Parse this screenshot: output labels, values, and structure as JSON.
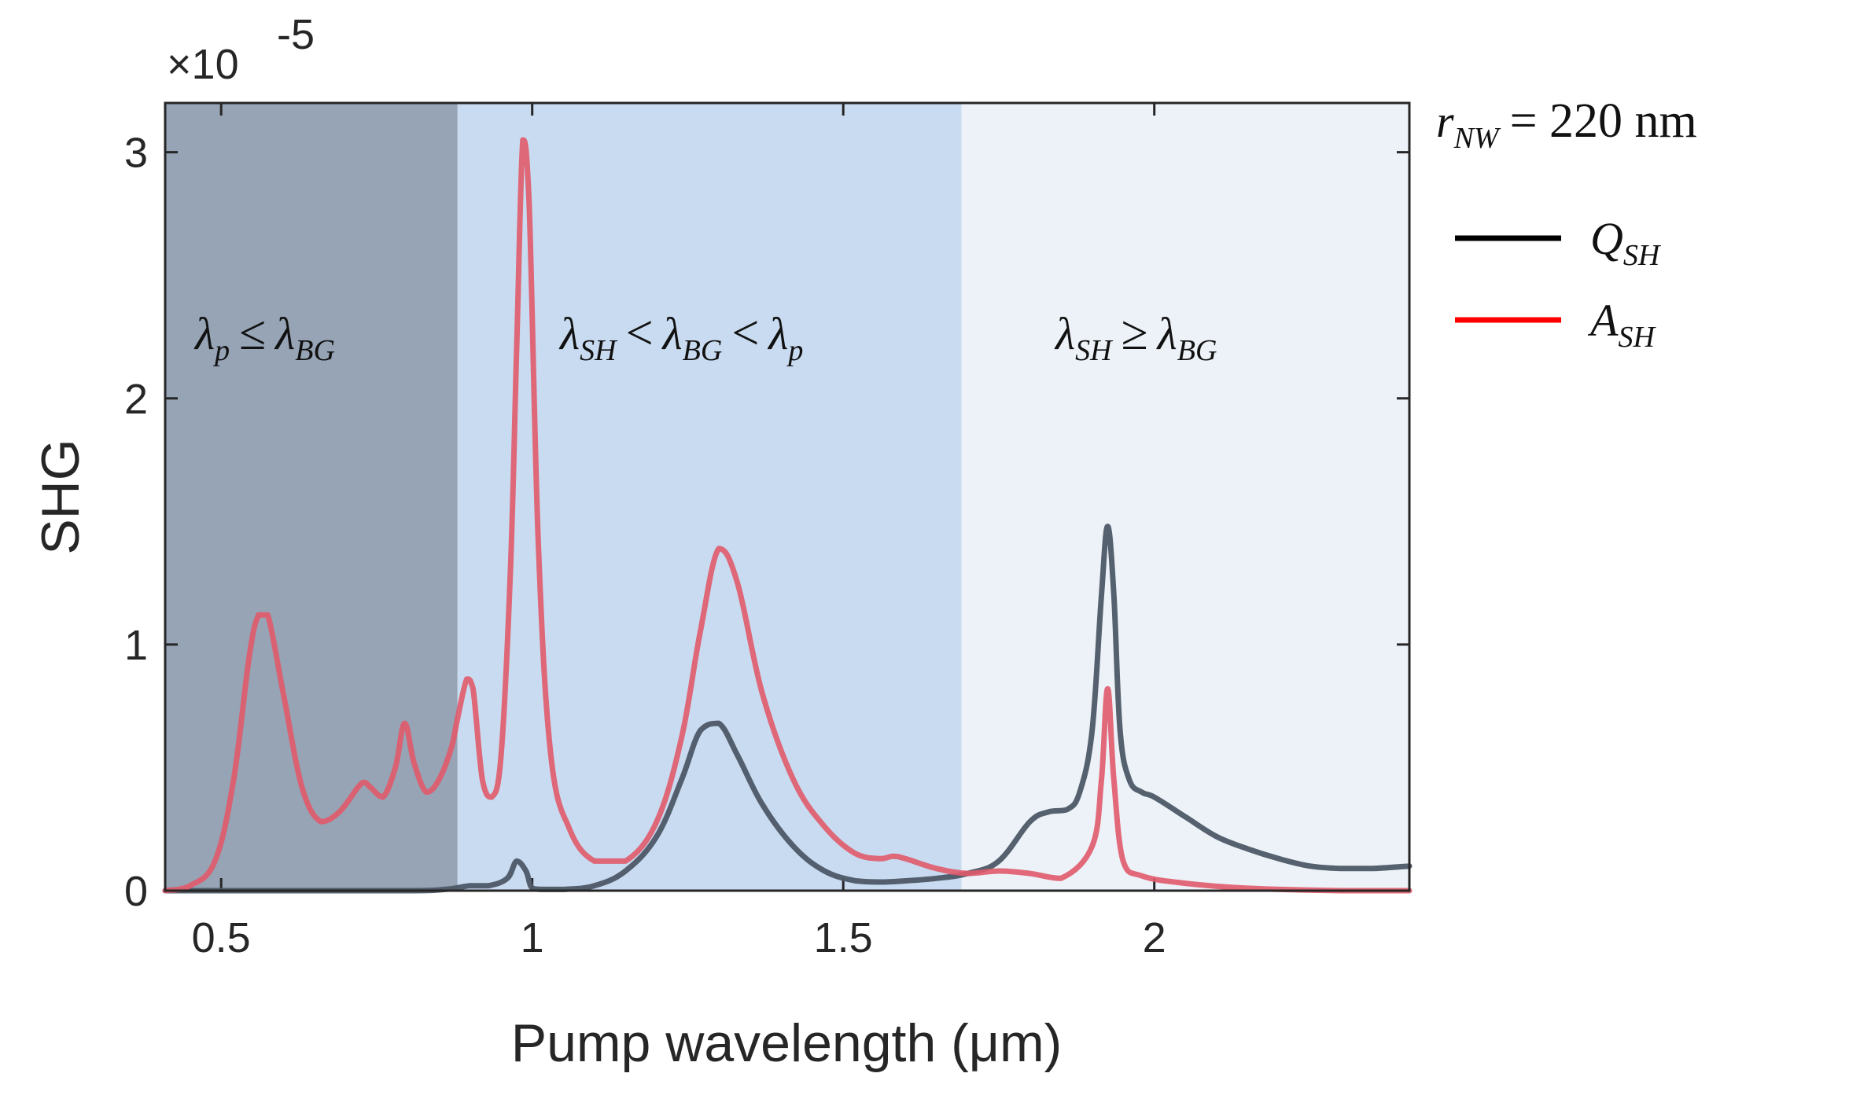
{
  "chart_data": {
    "type": "line",
    "title": "",
    "xlabel": "Pump wavelength (μm)",
    "ylabel": "SHG",
    "y_exponent_label": "×10",
    "y_exponent_power": "-5",
    "xlim": [
      0.41,
      2.41
    ],
    "ylim": [
      0,
      3.2
    ],
    "xticks": [
      0.5,
      1,
      1.5,
      2
    ],
    "xtick_labels": [
      "0.5",
      "1",
      "1.5",
      "2"
    ],
    "yticks": [
      0,
      1,
      2,
      3
    ],
    "ytick_labels": [
      "0",
      "1",
      "2",
      "3"
    ],
    "regions": [
      {
        "name": "region-absorbing",
        "x_from": 0.41,
        "x_to": 0.88,
        "color": "#96a4b5",
        "label": {
          "base": "λ",
          "sub": "p",
          "op": "≤",
          "base2": "λ",
          "sub2": "BG"
        }
      },
      {
        "name": "region-intermediate",
        "x_from": 0.88,
        "x_to": 1.69,
        "color": "#c9dbf0",
        "label": {
          "base": "λ",
          "sub": "SH",
          "op": "<",
          "base2": "λ",
          "sub2": "BG",
          "op2": "<",
          "base3": "λ",
          "sub3": "p"
        }
      },
      {
        "name": "region-transparent",
        "x_from": 1.69,
        "x_to": 2.41,
        "color": "#edf2f8",
        "label": {
          "base": "λ",
          "sub": "SH",
          "op": "≥",
          "base2": "λ",
          "sub2": "BG"
        }
      }
    ],
    "series": [
      {
        "name": "Q_SH",
        "color": "#4d5966",
        "x": [
          0.41,
          0.6,
          0.8,
          0.86,
          0.9,
          0.93,
          0.96,
          0.975,
          0.99,
          1.0,
          1.02,
          1.05,
          1.1,
          1.15,
          1.2,
          1.24,
          1.27,
          1.3,
          1.33,
          1.37,
          1.42,
          1.47,
          1.52,
          1.56,
          1.6,
          1.65,
          1.7,
          1.75,
          1.8,
          1.83,
          1.86,
          1.88,
          1.9,
          1.915,
          1.925,
          1.935,
          1.945,
          1.96,
          1.98,
          2.0,
          2.05,
          2.1,
          2.15,
          2.2,
          2.25,
          2.3,
          2.35,
          2.41
        ],
        "y": [
          0.0,
          0.0,
          0.0,
          0.005,
          0.02,
          0.02,
          0.05,
          0.12,
          0.08,
          0.01,
          0.005,
          0.005,
          0.02,
          0.08,
          0.22,
          0.45,
          0.65,
          0.68,
          0.55,
          0.35,
          0.18,
          0.08,
          0.04,
          0.035,
          0.04,
          0.05,
          0.07,
          0.12,
          0.28,
          0.32,
          0.33,
          0.4,
          0.65,
          1.2,
          1.48,
          1.2,
          0.65,
          0.45,
          0.4,
          0.38,
          0.3,
          0.22,
          0.17,
          0.13,
          0.1,
          0.09,
          0.09,
          0.1
        ]
      },
      {
        "name": "A_SH",
        "color": "#e05a6a",
        "x": [
          0.41,
          0.45,
          0.49,
          0.52,
          0.545,
          0.56,
          0.575,
          0.6,
          0.63,
          0.66,
          0.69,
          0.72,
          0.73,
          0.74,
          0.76,
          0.78,
          0.795,
          0.81,
          0.83,
          0.85,
          0.87,
          0.88,
          0.895,
          0.905,
          0.92,
          0.935,
          0.95,
          0.965,
          0.975,
          0.985,
          0.995,
          1.01,
          1.03,
          1.06,
          1.1,
          1.15,
          1.2,
          1.24,
          1.27,
          1.3,
          1.33,
          1.37,
          1.42,
          1.47,
          1.52,
          1.56,
          1.58,
          1.6,
          1.65,
          1.7,
          1.75,
          1.8,
          1.85,
          1.9,
          1.915,
          1.925,
          1.935,
          1.95,
          1.98,
          2.05,
          2.15,
          2.3,
          2.41
        ],
        "y": [
          0.0,
          0.02,
          0.12,
          0.45,
          0.95,
          1.12,
          1.12,
          0.8,
          0.42,
          0.28,
          0.32,
          0.42,
          0.44,
          0.42,
          0.38,
          0.5,
          0.68,
          0.52,
          0.4,
          0.45,
          0.58,
          0.7,
          0.86,
          0.82,
          0.45,
          0.38,
          0.55,
          1.3,
          2.2,
          3.05,
          2.8,
          1.4,
          0.55,
          0.25,
          0.12,
          0.12,
          0.28,
          0.62,
          1.05,
          1.39,
          1.25,
          0.8,
          0.45,
          0.26,
          0.15,
          0.13,
          0.14,
          0.13,
          0.09,
          0.07,
          0.08,
          0.07,
          0.05,
          0.18,
          0.45,
          0.82,
          0.45,
          0.12,
          0.06,
          0.03,
          0.01,
          0.0,
          0.0
        ]
      }
    ],
    "legend": {
      "position": "right",
      "title_var": "r",
      "title_sub": "NW",
      "title_value": "= 220 nm",
      "entries": [
        {
          "base": "Q",
          "sub": "SH",
          "color": "#000000"
        },
        {
          "base": "A",
          "sub": "SH",
          "color": "#ff0000"
        }
      ]
    }
  }
}
